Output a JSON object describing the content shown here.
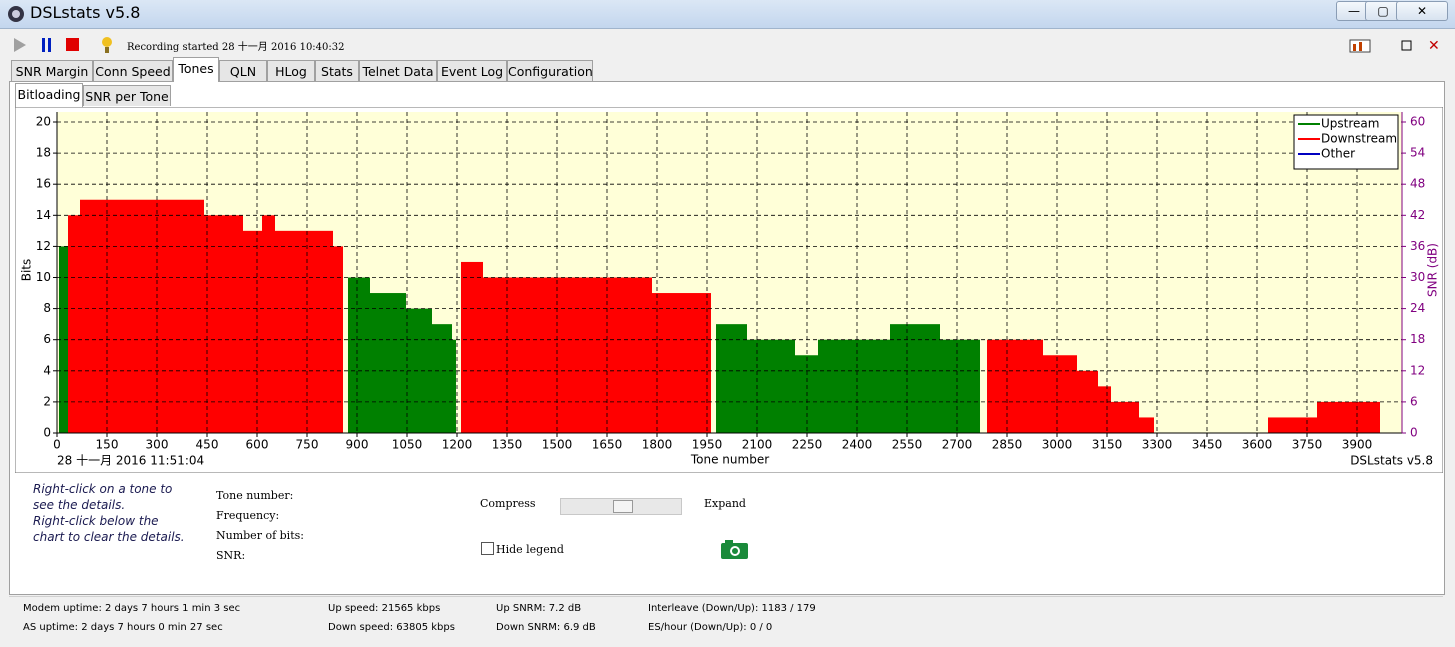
{
  "window": {
    "title": "DSLstats v5.8"
  },
  "toolbar": {
    "recording": "Recording started 28 十一月 2016 10:40:32"
  },
  "tabs": [
    "SNR Margin",
    "Conn Speed",
    "Tones",
    "QLN",
    "HLog",
    "Stats",
    "Telnet Data",
    "Event Log",
    "Configuration"
  ],
  "subtabs": [
    "Bitloading",
    "SNR per Tone"
  ],
  "chart_data": {
    "type": "step",
    "x_label": "Tone number",
    "y_label": "Bits",
    "y2_label": "SNR (dB)",
    "timestamp": "28 十一月 2016 11:51:04",
    "footer": "DSLstats v5.8",
    "xlim": [
      0,
      4035
    ],
    "xticks": [
      0,
      150,
      300,
      450,
      600,
      750,
      900,
      1050,
      1200,
      1350,
      1500,
      1650,
      1800,
      1950,
      2100,
      2250,
      2400,
      2550,
      2700,
      2850,
      3000,
      3150,
      3300,
      3450,
      3600,
      3750,
      3900
    ],
    "ylim": [
      0,
      20
    ],
    "yticks": [
      0,
      2,
      4,
      6,
      8,
      10,
      12,
      14,
      16,
      18,
      20
    ],
    "y2lim": [
      0,
      60
    ],
    "y2ticks": [
      0,
      6,
      12,
      18,
      24,
      30,
      36,
      42,
      48,
      54,
      60
    ],
    "grid": true,
    "legend": "upper right",
    "series": [
      {
        "name": "Upstream",
        "color": "#008000",
        "x": [
          6,
          33,
          873,
          939,
          1047,
          1125,
          1185,
          1197,
          1977,
          2070,
          2214,
          2283,
          2499,
          2649,
          2769
        ],
        "values": [
          12,
          null,
          10,
          9,
          8,
          7,
          6,
          null,
          7,
          6,
          5,
          6,
          7,
          6,
          null
        ]
      },
      {
        "name": "Downstream",
        "color": "#ff0000",
        "x": [
          33,
          69,
          441,
          558,
          615,
          654,
          828,
          858,
          1212,
          1278,
          1785,
          1962,
          2790,
          2958,
          3060,
          3123,
          3162,
          3246,
          3291,
          3633,
          3780,
          3969
        ],
        "values": [
          14,
          15,
          14,
          13,
          14,
          13,
          12,
          null,
          11,
          10,
          9,
          null,
          6,
          5,
          4,
          3,
          2,
          1,
          null,
          1,
          2,
          null
        ]
      },
      {
        "name": "Other",
        "color": "#0000c0",
        "x": [],
        "values": []
      }
    ]
  },
  "panel": {
    "hint": [
      "Right-click on a tone to",
      "see the details.",
      "Right-click below the",
      "chart to clear the details."
    ],
    "fields": [
      "Tone number:",
      "Frequency:",
      "Number of bits:",
      "SNR:"
    ],
    "compress": "Compress",
    "expand": "Expand",
    "hide_legend": "Hide legend"
  },
  "status": {
    "modem_uptime": "Modem uptime: 2 days 7 hours 1 min 3 sec",
    "as_uptime": "AS uptime: 2 days 7 hours 0 min 27 sec",
    "up_speed": "Up speed: 21565 kbps",
    "down_speed": "Down speed: 63805 kbps",
    "up_snrm": "Up SNRM: 7.2 dB",
    "down_snrm": "Down SNRM: 6.9 dB",
    "interleave": "Interleave (Down/Up): 1183 / 179",
    "es_hour": "ES/hour (Down/Up): 0 / 0"
  }
}
